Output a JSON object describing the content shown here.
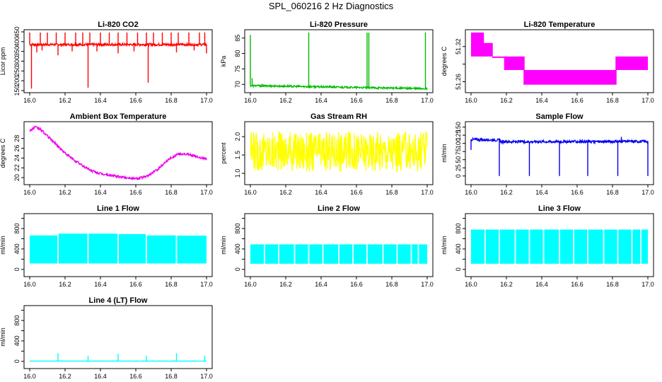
{
  "page": {
    "title": "SPL_060216  2 Hz Diagnostics"
  },
  "chart_data": [
    {
      "type": "line",
      "title": "Li-820 CO2",
      "ylabel": "Licor ppm",
      "color": "#ff0000",
      "xlim": [
        16.0,
        17.0
      ],
      "ylim": [
        150,
        450
      ],
      "xticks": [
        "16.0",
        "16.2",
        "16.4",
        "16.6",
        "16.8",
        "17.0"
      ],
      "yticks": [
        150,
        200,
        250,
        300,
        350,
        400,
        450
      ],
      "series": [
        {
          "baseline": [
            [
              16.0,
              385
            ],
            [
              17.0,
              385
            ]
          ],
          "noise": 6,
          "spikes": [
            [
              16.0,
              455
            ],
            [
              16.06,
              455
            ],
            [
              16.1,
              455
            ],
            [
              16.15,
              455
            ],
            [
              16.2,
              455
            ],
            [
              16.26,
              455
            ],
            [
              16.3,
              455
            ],
            [
              16.34,
              455
            ],
            [
              16.4,
              455
            ],
            [
              16.45,
              455
            ],
            [
              16.5,
              455
            ],
            [
              16.55,
              455
            ],
            [
              16.61,
              455
            ],
            [
              16.66,
              455
            ],
            [
              16.7,
              455
            ],
            [
              16.75,
              455
            ],
            [
              16.8,
              455
            ],
            [
              16.84,
              455
            ],
            [
              16.9,
              455
            ],
            [
              16.96,
              455
            ],
            [
              16.99,
              455
            ],
            [
              16.01,
              160
            ],
            [
              16.33,
              165
            ],
            [
              16.67,
              190
            ],
            [
              16.04,
              345
            ],
            [
              16.07,
              355
            ],
            [
              16.16,
              330
            ],
            [
              16.24,
              350
            ],
            [
              16.38,
              350
            ],
            [
              16.5,
              340
            ],
            [
              16.59,
              350
            ],
            [
              16.83,
              345
            ],
            [
              16.93,
              355
            ],
            [
              17.0,
              340
            ]
          ]
        }
      ]
    },
    {
      "type": "line",
      "title": "Li-820 Pressure",
      "ylabel": "kPa",
      "color": "#00bb00",
      "xlim": [
        16.0,
        17.0
      ],
      "ylim": [
        68,
        87
      ],
      "xticks": [
        "16.0",
        "16.2",
        "16.4",
        "16.6",
        "16.8",
        "17.0"
      ],
      "yticks": [
        70,
        75,
        80,
        85
      ],
      "series": [
        {
          "baseline": [
            [
              16.0,
              69.6
            ],
            [
              17.0,
              68.6
            ]
          ],
          "noise": 0.3,
          "spikes": [
            [
              16.0,
              86
            ],
            [
              16.33,
              87
            ],
            [
              16.66,
              87
            ],
            [
              16.67,
              87
            ],
            [
              16.99,
              87
            ],
            [
              16.01,
              72
            ]
          ]
        }
      ]
    },
    {
      "type": "line",
      "title": "Li-820 Temperature",
      "ylabel": "degrees C",
      "color": "#ff00ff",
      "xlim": [
        16.0,
        17.0
      ],
      "ylim": [
        51.245,
        51.345
      ],
      "xticks": [
        "16.0",
        "16.2",
        "16.4",
        "16.6",
        "16.8",
        "17.0"
      ],
      "yticks": [
        51.26,
        51.29,
        51.32
      ],
      "ytick_labels": [
        "51.26",
        "",
        "51.32"
      ],
      "series": [
        {
          "bands": [
            [
              16.0,
              16.07,
              51.303,
              51.345
            ],
            [
              16.07,
              16.12,
              51.303,
              51.326
            ],
            [
              16.12,
              16.19,
              51.303,
              51.303
            ],
            [
              16.19,
              16.3,
              51.28,
              51.303
            ],
            [
              16.3,
              16.33,
              51.255,
              51.28
            ],
            [
              16.33,
              16.73,
              51.255,
              51.28
            ],
            [
              16.73,
              16.82,
              51.255,
              51.28
            ],
            [
              16.82,
              17.0,
              51.28,
              51.303
            ]
          ]
        }
      ]
    },
    {
      "type": "line",
      "title": "Ambient Box Temperature",
      "ylabel": "degrees C",
      "color": "#ee00ee",
      "xlim": [
        16.0,
        17.0
      ],
      "ylim": [
        19,
        31
      ],
      "xticks": [
        "16.0",
        "16.2",
        "16.4",
        "16.6",
        "16.8",
        "17.0"
      ],
      "yticks": [
        20,
        22,
        24,
        26,
        28
      ],
      "series": [
        {
          "baseline": [
            [
              16.0,
              29.6
            ],
            [
              16.03,
              30.3
            ],
            [
              16.06,
              29.9
            ],
            [
              16.1,
              28.5
            ],
            [
              16.15,
              26.8
            ],
            [
              16.2,
              25.0
            ],
            [
              16.25,
              23.6
            ],
            [
              16.3,
              22.4
            ],
            [
              16.35,
              21.4
            ],
            [
              16.4,
              20.8
            ],
            [
              16.5,
              20.2
            ],
            [
              16.6,
              19.8
            ],
            [
              16.66,
              20.2
            ],
            [
              16.72,
              21.6
            ],
            [
              16.78,
              23.6
            ],
            [
              16.84,
              24.9
            ],
            [
              16.9,
              24.7
            ],
            [
              16.95,
              24.2
            ],
            [
              17.0,
              23.8
            ]
          ],
          "noise": 0.25,
          "spikes": []
        }
      ]
    },
    {
      "type": "line",
      "title": "Gas Stream RH",
      "ylabel": "percent",
      "color": "#ffff00",
      "xlim": [
        16.0,
        17.0
      ],
      "ylim": [
        0.75,
        2.35
      ],
      "xticks": [
        "16.0",
        "16.2",
        "16.4",
        "16.6",
        "16.8",
        "17.0"
      ],
      "yticks": [
        1.0,
        1.5,
        2.0
      ],
      "ytick_labels": [
        "1.0",
        "1.5",
        "2.0"
      ],
      "series": [
        {
          "baseline": [
            [
              16.0,
              1.6
            ],
            [
              17.0,
              1.6
            ]
          ],
          "noise": 0.55,
          "spikes": []
        }
      ]
    },
    {
      "type": "line",
      "title": "Sample Flow",
      "ylabel": "ml/min",
      "color": "#0000ee",
      "xlim": [
        16.0,
        17.0
      ],
      "ylim": [
        -20,
        160
      ],
      "xticks": [
        "16.0",
        "16.2",
        "16.4",
        "16.6",
        "16.8",
        "17.0"
      ],
      "yticks": [
        0,
        25,
        50,
        75,
        100,
        125,
        150
      ],
      "series": [
        {
          "baseline": [
            [
              16.0,
              112
            ],
            [
              16.16,
              110
            ],
            [
              16.17,
              105
            ],
            [
              17.0,
              106
            ]
          ],
          "noise": 4,
          "spikes": [
            [
              16.0,
              80
            ],
            [
              16.16,
              0
            ],
            [
              16.33,
              0
            ],
            [
              16.5,
              0
            ],
            [
              16.66,
              0
            ],
            [
              16.83,
              0
            ],
            [
              17.0,
              0
            ],
            [
              16.3,
              98
            ],
            [
              16.7,
              98
            ],
            [
              16.85,
              120
            ],
            [
              16.18,
              97
            ]
          ]
        }
      ]
    },
    {
      "type": "line",
      "title": "Line 1 Flow",
      "ylabel": "ml/min",
      "color": "#00ffff",
      "xlim": [
        16.0,
        17.0
      ],
      "ylim": [
        -100,
        1050
      ],
      "xticks": [
        "16.0",
        "16.2",
        "16.4",
        "16.6",
        "16.8",
        "17.0"
      ],
      "yticks": [
        0,
        200,
        400,
        600,
        800,
        1000
      ],
      "ytick_labels": [
        "0",
        "",
        "400",
        "",
        "800",
        ""
      ],
      "series": [
        {
          "bands": [
            [
              16.0,
              16.16,
              115,
              665
            ],
            [
              16.16,
              16.33,
              115,
              700
            ],
            [
              16.33,
              16.5,
              115,
              700
            ],
            [
              16.5,
              16.66,
              115,
              690
            ],
            [
              16.66,
              16.83,
              115,
              665
            ],
            [
              16.83,
              17.0,
              115,
              660
            ]
          ],
          "gaps": [
            16.16,
            16.33,
            16.5,
            16.66,
            16.83
          ]
        }
      ]
    },
    {
      "type": "line",
      "title": "Line 2 Flow",
      "ylabel": "ml/min",
      "color": "#00ffff",
      "xlim": [
        16.0,
        17.0
      ],
      "ylim": [
        -100,
        1050
      ],
      "xticks": [
        "16.0",
        "16.2",
        "16.4",
        "16.6",
        "16.8",
        "17.0"
      ],
      "yticks": [
        0,
        200,
        400,
        600,
        800,
        1000
      ],
      "ytick_labels": [
        "0",
        "",
        "400",
        "",
        "800",
        ""
      ],
      "series": [
        {
          "bands": [
            [
              16.0,
              17.0,
              110,
              490
            ]
          ],
          "gaps": [
            16.08,
            16.16,
            16.25,
            16.33,
            16.41,
            16.5,
            16.58,
            16.66,
            16.75,
            16.83,
            16.91,
            16.95
          ]
        }
      ]
    },
    {
      "type": "line",
      "title": "Line 3 Flow",
      "ylabel": "ml/min",
      "color": "#00ffff",
      "xlim": [
        16.0,
        17.0
      ],
      "ylim": [
        -100,
        1050
      ],
      "xticks": [
        "16.0",
        "16.2",
        "16.4",
        "16.6",
        "16.8",
        "17.0"
      ],
      "yticks": [
        0,
        200,
        400,
        600,
        800,
        1000
      ],
      "ytick_labels": [
        "0",
        "",
        "400",
        "",
        "800",
        ""
      ],
      "series": [
        {
          "bands": [
            [
              16.0,
              17.0,
              110,
              780
            ]
          ],
          "gaps": [
            16.08,
            16.16,
            16.25,
            16.33,
            16.41,
            16.5,
            16.58,
            16.66,
            16.75,
            16.83,
            16.91,
            16.96
          ]
        }
      ]
    },
    {
      "type": "line",
      "title": "Line 4 (LT) Flow",
      "ylabel": "ml/min",
      "color": "#00ffff",
      "xlim": [
        16.0,
        17.0
      ],
      "ylim": [
        -100,
        1050
      ],
      "xticks": [
        "16.0",
        "16.2",
        "16.4",
        "16.6",
        "16.8",
        "17.0"
      ],
      "yticks": [
        0,
        200,
        400,
        600,
        800,
        1000
      ],
      "ytick_labels": [
        "0",
        "",
        "400",
        "",
        "800",
        ""
      ],
      "series": [
        {
          "baseline": [
            [
              16.0,
              5
            ],
            [
              17.0,
              5
            ]
          ],
          "noise": 3,
          "spikes": [
            [
              16.16,
              160
            ],
            [
              16.33,
              110
            ],
            [
              16.5,
              150
            ],
            [
              16.66,
              110
            ],
            [
              16.83,
              160
            ],
            [
              16.99,
              110
            ]
          ]
        }
      ]
    }
  ]
}
